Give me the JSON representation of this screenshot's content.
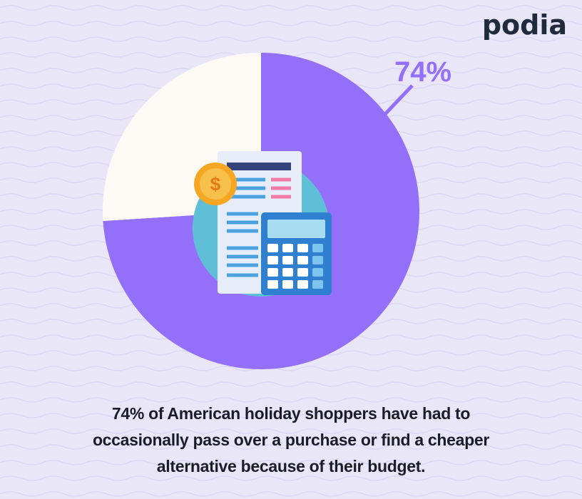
{
  "brand": "podia",
  "chart_data": {
    "type": "pie",
    "values": [
      74,
      26
    ],
    "value_labels": [
      "74%",
      null
    ],
    "colors": [
      "#9470fa",
      "#fdfaf5"
    ]
  },
  "caption": [
    "74% of American holiday shoppers have had to",
    "occasionally pass over a purchase or find a cheaper",
    "alternative because of their budget."
  ]
}
